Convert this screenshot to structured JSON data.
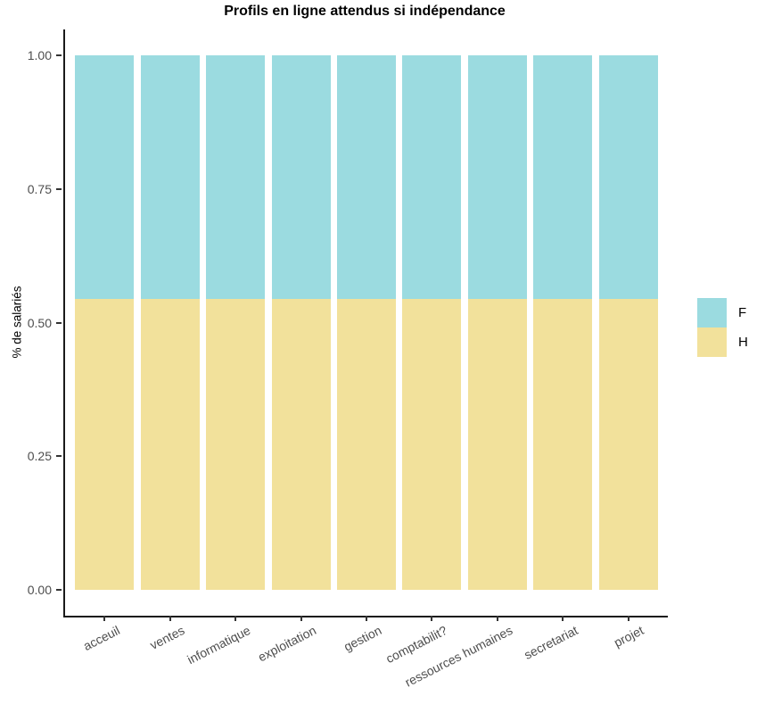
{
  "chart_data": {
    "type": "bar",
    "stacked": true,
    "title": "Profils en ligne attendus si indépendance",
    "xlabel": "",
    "grid": false,
    "background": "#ffffff",
    "categories": [
      "acceuil",
      "ventes",
      "informatique",
      "exploitation",
      "gestion",
      "comptabilit?",
      "ressources humaines",
      "secretariat",
      "projet"
    ],
    "series": [
      {
        "name": "H",
        "color": "#F2E19B",
        "values": [
          0.545,
          0.545,
          0.545,
          0.545,
          0.545,
          0.545,
          0.545,
          0.545,
          0.545
        ]
      },
      {
        "name": "F",
        "color": "#9BDBE0",
        "values": [
          0.455,
          0.455,
          0.455,
          0.455,
          0.455,
          0.455,
          0.455,
          0.455,
          0.455
        ]
      }
    ],
    "stack_order_bottom_to_top": [
      "H",
      "F"
    ],
    "y_axis": {
      "label": "% de salariés",
      "range": [
        0,
        1
      ],
      "ticks": [
        {
          "value": 0.0,
          "label": "0.00"
        },
        {
          "value": 0.25,
          "label": "0.25"
        },
        {
          "value": 0.5,
          "label": "0.50"
        },
        {
          "value": 0.75,
          "label": "0.75"
        },
        {
          "value": 1.0,
          "label": "1.00"
        }
      ]
    },
    "legend": {
      "position": "right",
      "entries": [
        {
          "label": "F",
          "color": "#9BDBE0"
        },
        {
          "label": "H",
          "color": "#F2E19B"
        }
      ]
    }
  }
}
